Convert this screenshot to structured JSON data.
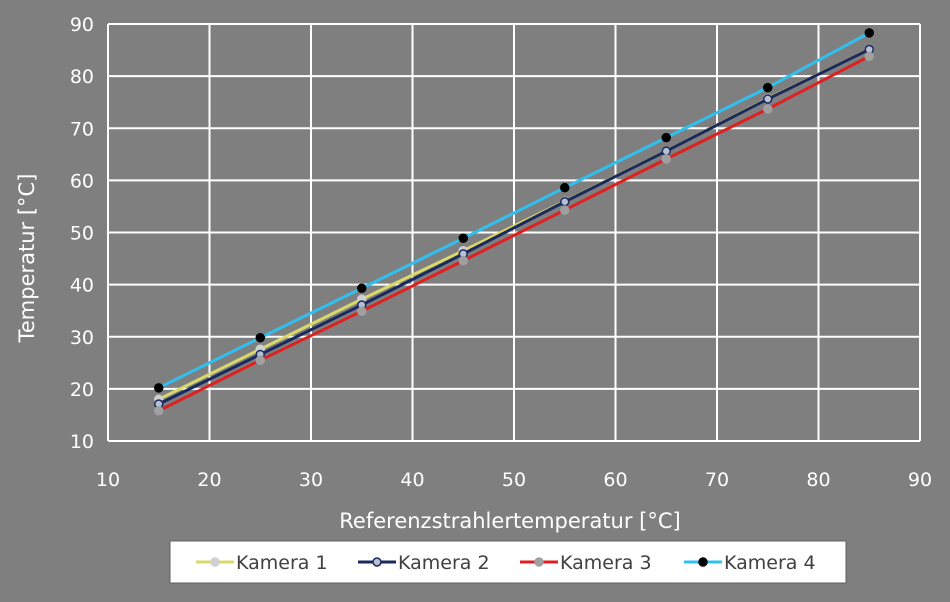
{
  "chart_data": {
    "type": "line",
    "title": "",
    "xlabel": "Referenzstrahlertemperatur  [°C]",
    "ylabel": "Temperatur [°C]",
    "xlim": [
      10,
      90
    ],
    "ylim": [
      10,
      90
    ],
    "xticks": [
      10,
      20,
      30,
      40,
      50,
      60,
      70,
      80,
      90
    ],
    "yticks": [
      10,
      20,
      30,
      40,
      50,
      60,
      70,
      80,
      90
    ],
    "grid": true,
    "legend_position": "bottom",
    "x": [
      15,
      25,
      35,
      45,
      55,
      65,
      75,
      85
    ],
    "series": [
      {
        "name": "Kamera 1",
        "line_color": "#d9d96a",
        "marker_color": "#d0d0d0",
        "marker_edge": "#d0d0d0",
        "values": [
          18.0,
          27.6,
          37.2,
          46.5,
          56.0,
          65.6,
          75.7,
          85.1
        ]
      },
      {
        "name": "Kamera 2",
        "line_color": "#1a2a5e",
        "marker_color": "#b8bfd0",
        "marker_edge": "#1a2a5e",
        "values": [
          17.1,
          26.6,
          36.1,
          45.9,
          55.9,
          65.6,
          75.6,
          85.1
        ]
      },
      {
        "name": "Kamera 3",
        "line_color": "#e02020",
        "marker_color": "#a0a0a0",
        "marker_edge": "#a0a0a0",
        "values": [
          15.8,
          25.5,
          34.9,
          44.6,
          54.3,
          64.1,
          73.7,
          83.8
        ]
      },
      {
        "name": "Kamera 4",
        "line_color": "#30c0f0",
        "marker_color": "#000000",
        "marker_edge": "#000000",
        "values": [
          20.2,
          29.8,
          39.3,
          48.9,
          58.6,
          68.2,
          77.8,
          88.3
        ]
      }
    ]
  }
}
